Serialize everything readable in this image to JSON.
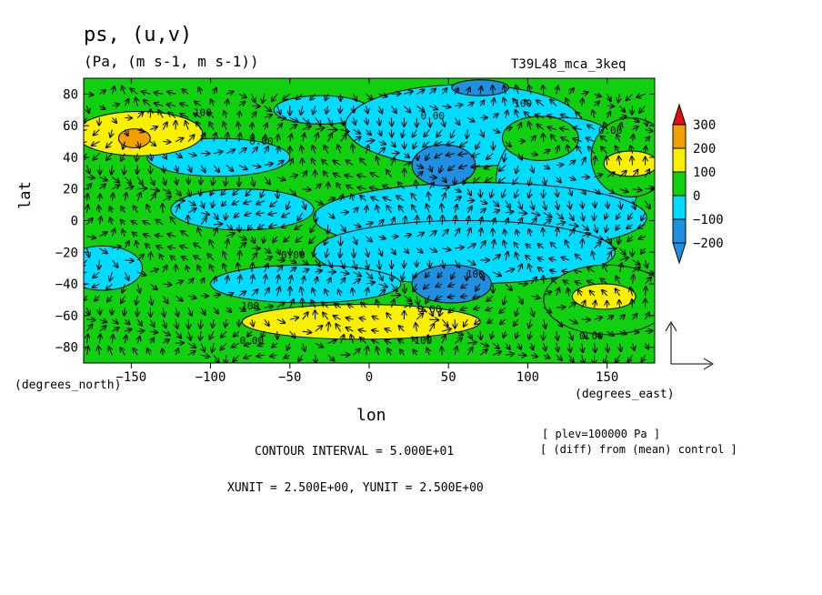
{
  "header": {
    "title": "ps, (u,v)",
    "units": "(Pa, (m s-1, m s-1))",
    "run_name": "T39L48_mca_3keq"
  },
  "axes": {
    "ylabel": "lat",
    "xlabel": "lon",
    "y_unit_label": "(degrees_north)",
    "x_unit_label": "(degrees_east)"
  },
  "notes": {
    "plev": "[ plev=100000 Pa ]",
    "diff": "[ (diff) from (mean) control ]",
    "contour_interval": "CONTOUR INTERVAL = 5.000E+01",
    "xyunit": "XUNIT = 2.500E+00, YUNIT = 2.500E+00"
  },
  "colors": {
    "level_m200": "#1f8fe0",
    "level_m100": "#00dcff",
    "level_0": "#10d010",
    "level_100": "#f8f000",
    "level_200": "#f0a000",
    "level_300": "#e01010"
  },
  "chart_data": {
    "type": "heatmap",
    "xlim": [
      -180,
      180
    ],
    "ylim": [
      -90,
      90
    ],
    "x_ticks": [
      -150,
      -100,
      -50,
      0,
      50,
      100,
      150
    ],
    "y_ticks": [
      -80,
      -60,
      -40,
      -20,
      0,
      20,
      40,
      60,
      80
    ],
    "colorbar": {
      "levels": [
        300,
        200,
        100,
        0,
        -100,
        -200
      ],
      "labels": [
        "300",
        "200",
        "100",
        "0",
        "−100",
        "−200"
      ]
    },
    "contour_labels": [
      {
        "text": "100",
        "lon": -105,
        "lat": 66
      },
      {
        "text": "0.00",
        "lon": 40,
        "lat": 64
      },
      {
        "text": "100",
        "lon": 97,
        "lat": 72
      },
      {
        "text": "0.00",
        "lon": 152,
        "lat": 55
      },
      {
        "text": "0.00",
        "lon": -68,
        "lat": 48
      },
      {
        "text": "0.00",
        "lon": -48,
        "lat": -24
      },
      {
        "text": "100",
        "lon": 67,
        "lat": -36
      },
      {
        "text": "100",
        "lon": -75,
        "lat": -56
      },
      {
        "text": "0.00",
        "lon": 38,
        "lat": -58
      },
      {
        "text": "0.00",
        "lon": -74,
        "lat": -78
      },
      {
        "text": "100",
        "lon": 34,
        "lat": -78
      },
      {
        "text": "0.00",
        "lon": 140,
        "lat": -75
      }
    ],
    "regions": [
      {
        "level": -100,
        "lon": -30,
        "lat": 70,
        "rx": 30,
        "ry": 9
      },
      {
        "level": -100,
        "lon": 60,
        "lat": 60,
        "rx": 75,
        "ry": 26
      },
      {
        "level": -100,
        "lon": 125,
        "lat": 25,
        "rx": 45,
        "ry": 40
      },
      {
        "level": -100,
        "lon": 70,
        "lat": 2,
        "rx": 105,
        "ry": 22
      },
      {
        "level": -100,
        "lon": 60,
        "lat": -20,
        "rx": 95,
        "ry": 20
      },
      {
        "level": -100,
        "lon": -95,
        "lat": 40,
        "rx": 45,
        "ry": 12
      },
      {
        "level": -100,
        "lon": -40,
        "lat": -40,
        "rx": 60,
        "ry": 12
      },
      {
        "level": -100,
        "lon": -168,
        "lat": -30,
        "rx": 25,
        "ry": 14
      },
      {
        "level": -100,
        "lon": -80,
        "lat": 7,
        "rx": 45,
        "ry": 13
      },
      {
        "level": -200,
        "lon": 70,
        "lat": 84,
        "rx": 18,
        "ry": 5
      },
      {
        "level": -200,
        "lon": 47,
        "lat": 35,
        "rx": 20,
        "ry": 13
      },
      {
        "level": -200,
        "lon": 52,
        "lat": -40,
        "rx": 25,
        "ry": 12
      },
      {
        "level": 0,
        "lon": 108,
        "lat": 52,
        "rx": 24,
        "ry": 14
      },
      {
        "level": 0,
        "lon": 165,
        "lat": 40,
        "rx": 25,
        "ry": 25
      },
      {
        "level": 0,
        "lon": 150,
        "lat": -50,
        "rx": 40,
        "ry": 22
      },
      {
        "level": 100,
        "lon": -145,
        "lat": 55,
        "rx": 40,
        "ry": 14
      },
      {
        "level": 100,
        "lon": -5,
        "lat": -64,
        "rx": 75,
        "ry": 11
      },
      {
        "level": 100,
        "lon": 165,
        "lat": 36,
        "rx": 17,
        "ry": 8
      },
      {
        "level": 100,
        "lon": 148,
        "lat": -48,
        "rx": 20,
        "ry": 8
      },
      {
        "level": 200,
        "lon": -148,
        "lat": 52,
        "rx": 10,
        "ry": 6
      }
    ]
  }
}
